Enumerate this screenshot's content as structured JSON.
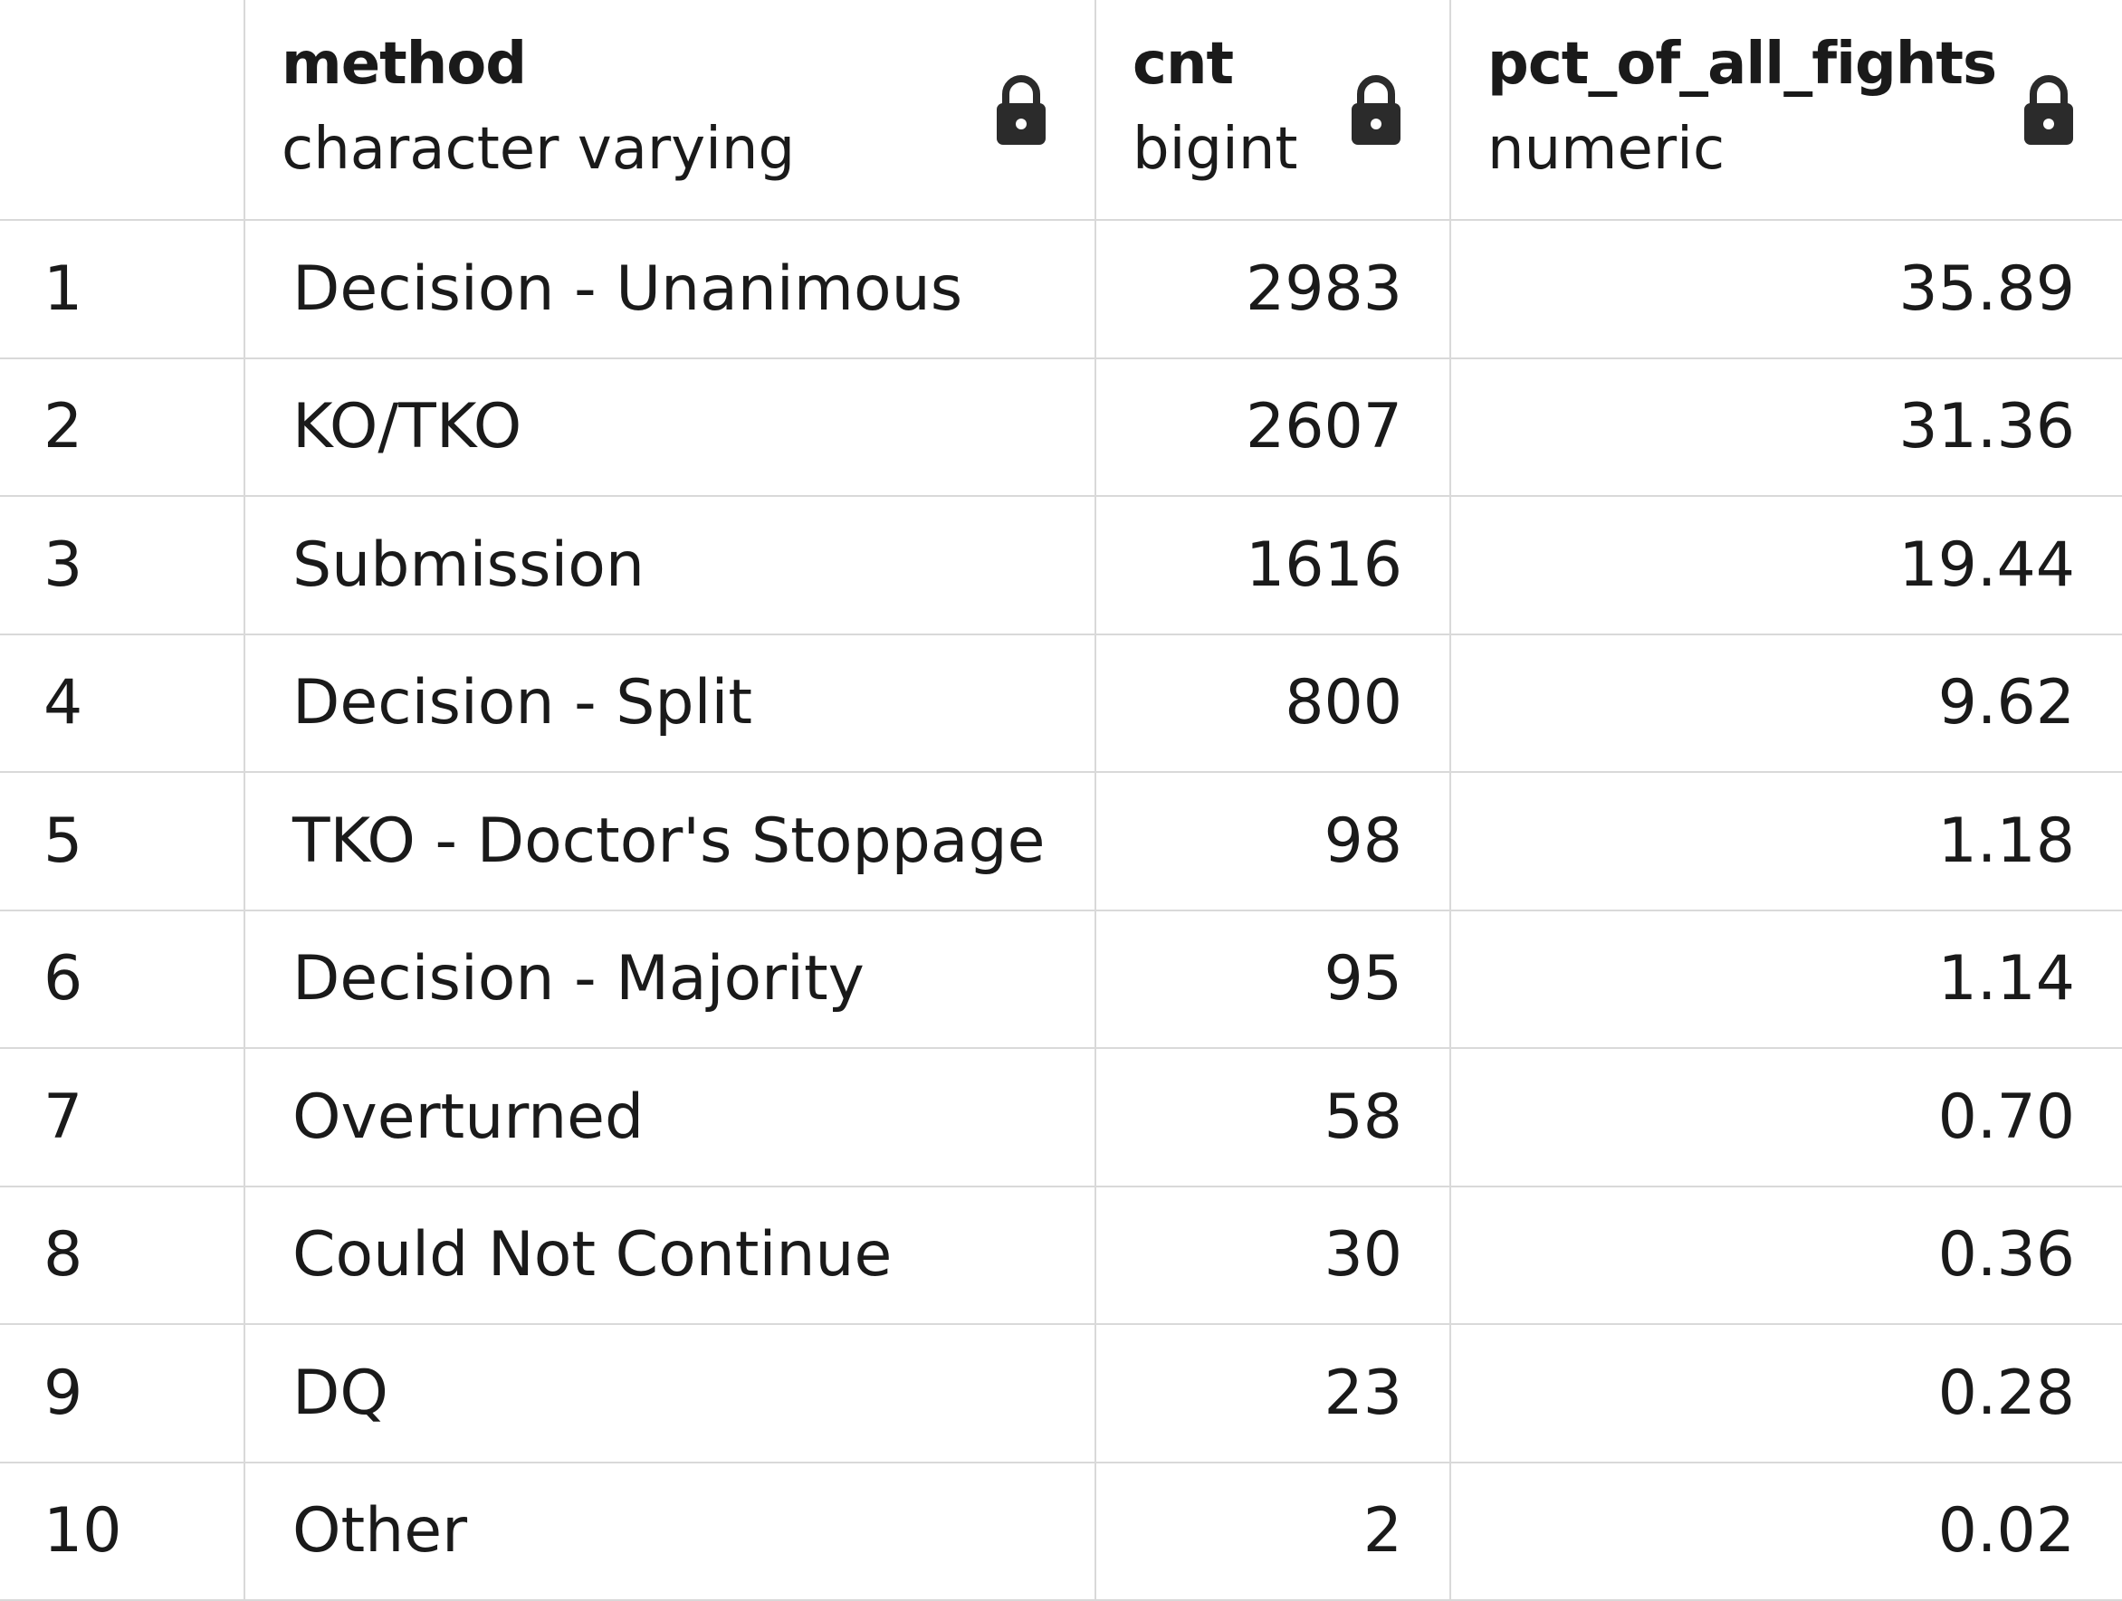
{
  "columns": [
    {
      "name": "method",
      "type": "character varying",
      "icon": "lock-icon"
    },
    {
      "name": "cnt",
      "type": "bigint",
      "icon": "lock-icon"
    },
    {
      "name": "pct_of_all_fights",
      "type": "numeric",
      "icon": "lock-icon"
    }
  ],
  "rows": [
    {
      "idx": "1",
      "method": "Decision - Unanimous",
      "cnt": "2983",
      "pct": "35.89"
    },
    {
      "idx": "2",
      "method": "KO/TKO",
      "cnt": "2607",
      "pct": "31.36"
    },
    {
      "idx": "3",
      "method": "Submission",
      "cnt": "1616",
      "pct": "19.44"
    },
    {
      "idx": "4",
      "method": "Decision - Split",
      "cnt": "800",
      "pct": "9.62"
    },
    {
      "idx": "5",
      "method": "TKO - Doctor's Stoppage",
      "cnt": "98",
      "pct": "1.18"
    },
    {
      "idx": "6",
      "method": "Decision - Majority",
      "cnt": "95",
      "pct": "1.14"
    },
    {
      "idx": "7",
      "method": "Overturned",
      "cnt": "58",
      "pct": "0.70"
    },
    {
      "idx": "8",
      "method": "Could Not Continue",
      "cnt": "30",
      "pct": "0.36"
    },
    {
      "idx": "9",
      "method": "DQ",
      "cnt": "23",
      "pct": "0.28"
    },
    {
      "idx": "10",
      "method": "Other",
      "cnt": "2",
      "pct": "0.02"
    }
  ],
  "colors": {
    "grid_line": "#d9d9d9",
    "text": "#1a1a1a",
    "background": "#ffffff"
  }
}
